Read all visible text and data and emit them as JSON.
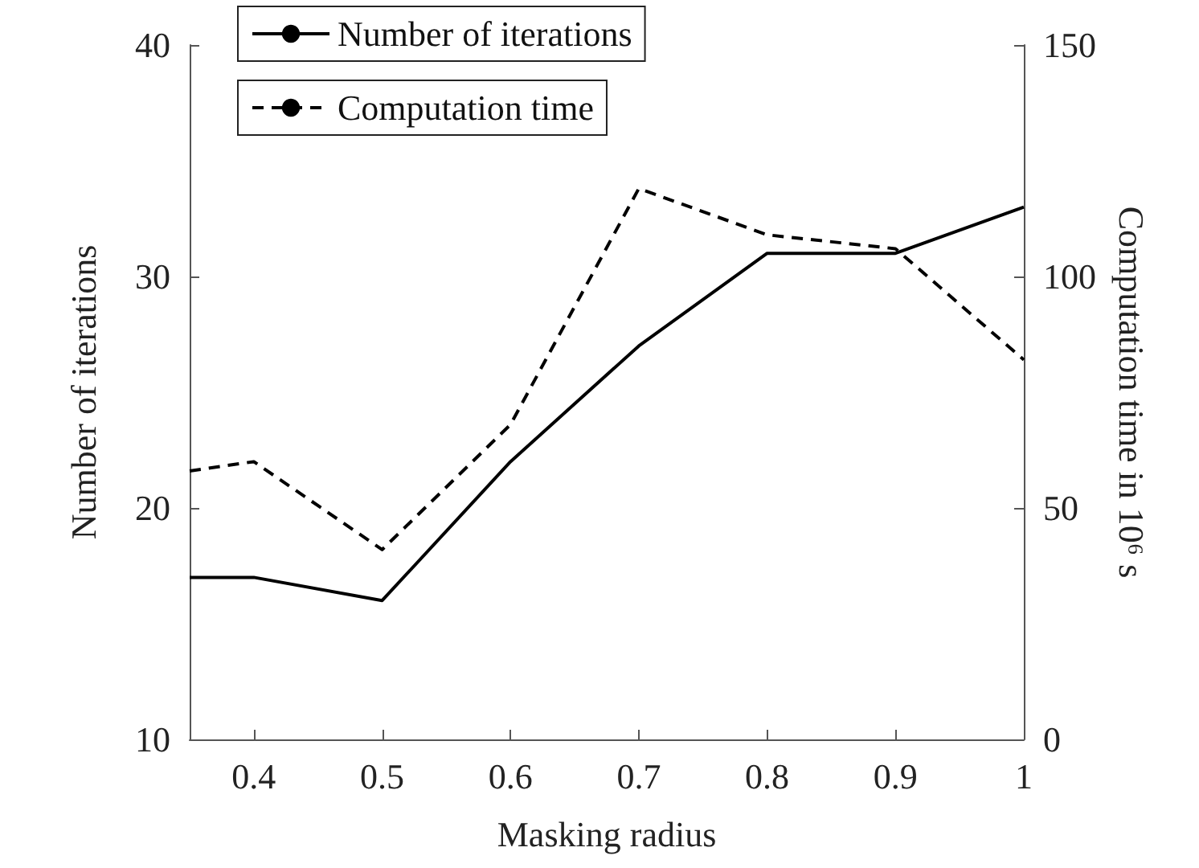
{
  "chart_data": {
    "type": "line",
    "xlabel": "Masking radius",
    "ylabel": "Number of iterations",
    "y2label": "Computation time in 10⁶ s",
    "x": [
      0.35,
      0.4,
      0.5,
      0.6,
      0.7,
      0.8,
      0.9,
      1
    ],
    "series": [
      {
        "name": "Number of iterations",
        "color": "#000000",
        "line_style": "solid",
        "values": [
          17,
          17,
          16,
          22,
          27,
          31,
          31,
          33
        ]
      },
      {
        "name": "Computation time",
        "color": "#000000",
        "line_style": "dashed",
        "axis": "y2",
        "values": [
          58,
          60,
          41,
          68,
          119,
          109,
          106,
          82
        ]
      }
    ],
    "xlim": [
      0.35,
      1
    ],
    "xticks": [
      0.4,
      0.5,
      0.6,
      0.7,
      0.8,
      0.9,
      1
    ],
    "ylim": [
      10,
      40
    ],
    "yticks": [
      10,
      20,
      30,
      40
    ],
    "y2lim": [
      0,
      150
    ],
    "y2ticks": [
      0,
      50,
      100,
      150
    ],
    "grid": false,
    "legend": "top left",
    "marker": "none"
  }
}
